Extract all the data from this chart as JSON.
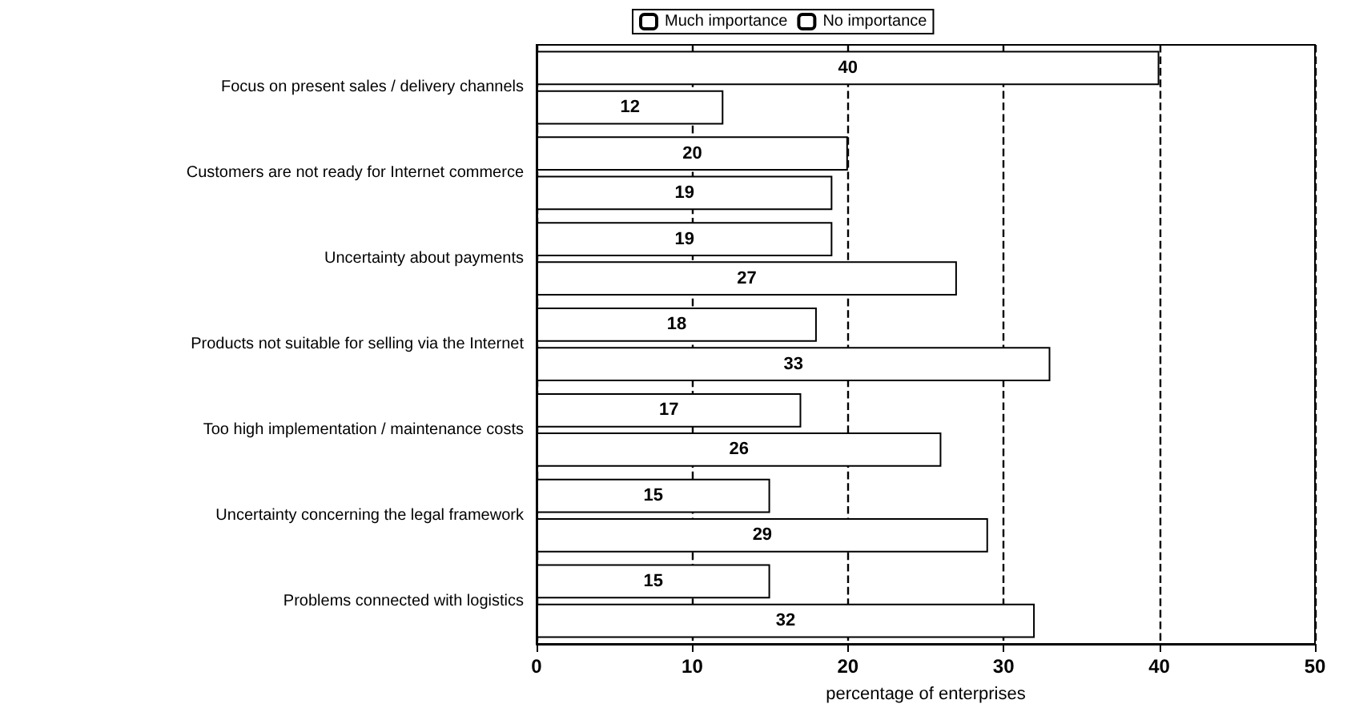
{
  "chart_data": {
    "type": "bar",
    "orientation": "horizontal",
    "xlabel": "percentage of enterprises",
    "categories": [
      "Focus on present sales / delivery channels",
      "Customers are not ready for Internet commerce",
      "Uncertainty about payments",
      "Products not suitable for selling via the Internet",
      "Too high implementation / maintenance costs",
      "Uncertainty concerning the legal framework",
      "Problems connected with logistics"
    ],
    "series": [
      {
        "name": "Much importance",
        "color": "#ffffff",
        "values": [
          40,
          20,
          19,
          18,
          17,
          15,
          15
        ]
      },
      {
        "name": "No importance",
        "color": "#ffffff",
        "values": [
          12,
          19,
          27,
          33,
          26,
          29,
          32
        ]
      }
    ],
    "xlim": [
      0,
      50
    ],
    "xticks": [
      0,
      10,
      20,
      30,
      40,
      50
    ],
    "grid": "x",
    "line_style": "dashed",
    "legend": "top",
    "data_labels": true
  }
}
